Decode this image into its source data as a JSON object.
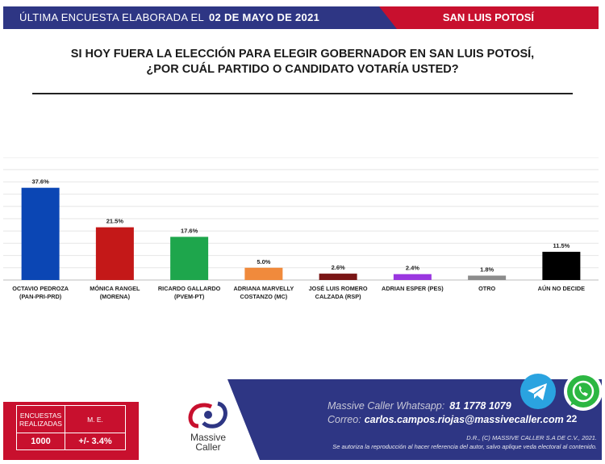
{
  "header": {
    "left_label": "ÚLTIMA ENCUESTA ELABORADA EL",
    "date": "02 DE MAYO DE 2021",
    "region": "SAN LUIS POTOSÍ",
    "colors": {
      "navy": "#2e3684",
      "red": "#c8102e"
    }
  },
  "question": {
    "line1": "SI HOY FUERA LA ELECCIÓN PARA ELEGIR GOBERNADOR EN SAN LUIS POTOSÍ,",
    "line2": "¿POR CUÁL PARTIDO O CANDIDATO VOTARÍA USTED?"
  },
  "chart_data": {
    "type": "bar",
    "categories": [
      [
        "OCTAVIO PEDROZA",
        "(PAN-PRI-PRD)"
      ],
      [
        "MÓNICA RANGEL",
        "(MORENA)"
      ],
      [
        "RICARDO GALLARDO",
        "(PVEM-PT)"
      ],
      [
        "ADRIANA MARVELLY",
        "COSTANZO (MC)"
      ],
      [
        "JOSÉ LUIS ROMERO",
        "CALZADA (RSP)"
      ],
      [
        "ADRIAN ESPER (PES)"
      ],
      [
        "OTRO"
      ],
      [
        "AÚN NO DECIDE"
      ]
    ],
    "values": [
      37.6,
      21.5,
      17.6,
      5.0,
      2.6,
      2.4,
      1.8,
      11.5
    ],
    "value_labels": [
      "37.6%",
      "21.5%",
      "17.6%",
      "5.0%",
      "2.6%",
      "2.4%",
      "1.8%",
      "11.5%"
    ],
    "colors": [
      "#0b46b4",
      "#c41818",
      "#1ea64c",
      "#f08a3c",
      "#7a1616",
      "#9a37e0",
      "#8c8c8c",
      "#000000"
    ],
    "ylim": [
      0,
      50
    ],
    "grid": true
  },
  "footer": {
    "surveys_label": "ENCUESTAS REALIZADAS",
    "surveys_value": "1000",
    "me_label": "M. E.",
    "me_value": "+/- 3.4%",
    "logo_line1": "Massive",
    "logo_line2": "Caller",
    "whatsapp_label": "Massive Caller Whatsapp:",
    "whatsapp_number": "81 1778 1079",
    "email_label": "Correo:",
    "email": "carlos.campos.riojas@massivecaller.com",
    "page_number": "22",
    "copyright1": "D.R., (C) MASSIVE CALLER S.A DE C.V., 2021.",
    "copyright2": "Se autoriza la reproducción al hacer referencia del autor, salvo aplique veda electoral al contenido.",
    "colors": {
      "navy": "#2e3684",
      "red": "#c8102e",
      "telegram": "#2aa3e0",
      "whatsapp": "#2cb742"
    }
  }
}
